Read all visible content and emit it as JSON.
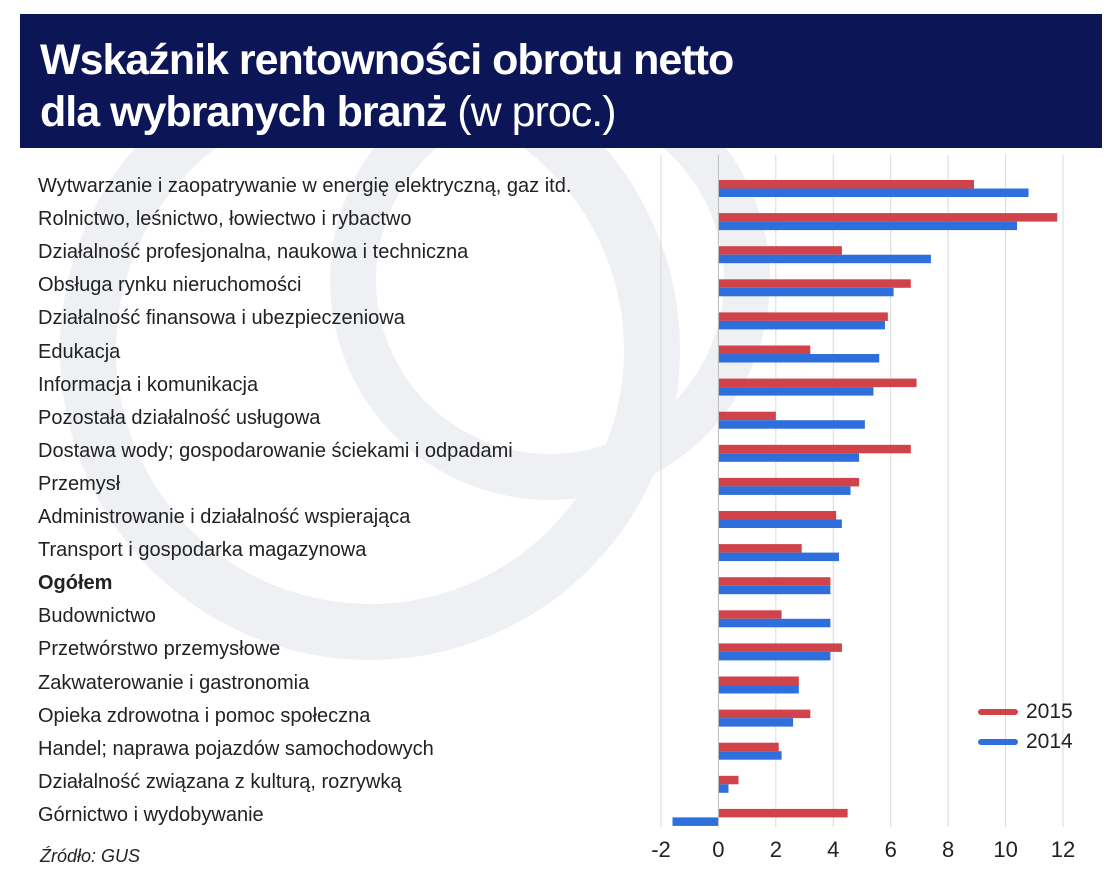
{
  "title": {
    "line1": "Wskaźnik rentowności obrotu netto",
    "line2_bold": "dla wybranych branż",
    "line2_unit": "(w proc.)"
  },
  "source": "Źródło: GUS",
  "colors": {
    "header_bg": "#0c1556",
    "series_2015": "#d1434b",
    "series_2014": "#2f6fdc"
  },
  "chart_data": {
    "type": "bar",
    "orientation": "horizontal",
    "title": "Wskaźnik rentowności obrotu netto dla wybranych branż (w proc.)",
    "categories": [
      "Wytwarzanie i zaopatrywanie w energię elektryczną, gaz itd.",
      "Rolnictwo, leśnictwo, łowiectwo i rybactwo",
      "Działalność profesjonalna, naukowa i techniczna",
      "Obsługa rynku nieruchomości",
      "Działalność finansowa i ubezpieczeniowa",
      "Edukacja",
      "Informacja i komunikacja",
      "Pozostała działalność usługowa",
      "Dostawa wody; gospodarowanie ściekami i odpadami",
      "Przemysł",
      "Administrowanie i działalność wspierająca",
      "Transport i gospodarka magazynowa",
      "Ogółem",
      "Budownictwo",
      "Przetwórstwo przemysłowe",
      "Zakwaterowanie i gastronomia",
      "Opieka zdrowotna i pomoc społeczna",
      "Handel; naprawa pojazdów samochodowych",
      "Działalność związana z kulturą, rozrywką",
      "Górnictwo i wydobywanie"
    ],
    "bold_category": "Ogółem",
    "series": [
      {
        "name": "2015",
        "color": "#d1434b",
        "values": [
          8.9,
          11.8,
          4.3,
          6.7,
          5.9,
          3.2,
          6.9,
          2.0,
          6.7,
          4.9,
          4.1,
          2.9,
          3.9,
          2.2,
          4.3,
          2.8,
          3.2,
          2.1,
          0.7,
          4.5
        ]
      },
      {
        "name": "2014",
        "color": "#2f6fdc",
        "values": [
          10.8,
          10.4,
          7.4,
          6.1,
          5.8,
          5.6,
          5.4,
          5.1,
          4.9,
          4.6,
          4.3,
          4.2,
          3.9,
          3.9,
          3.9,
          2.8,
          2.6,
          2.2,
          0.35,
          -1.6
        ]
      }
    ],
    "xlim": [
      -2,
      12
    ],
    "xticks": [
      "-2",
      "0",
      "2",
      "4",
      "6",
      "8",
      "10",
      "12"
    ],
    "xlabel": "",
    "ylabel": "",
    "legend_position": "bottom-right",
    "grid": true
  }
}
